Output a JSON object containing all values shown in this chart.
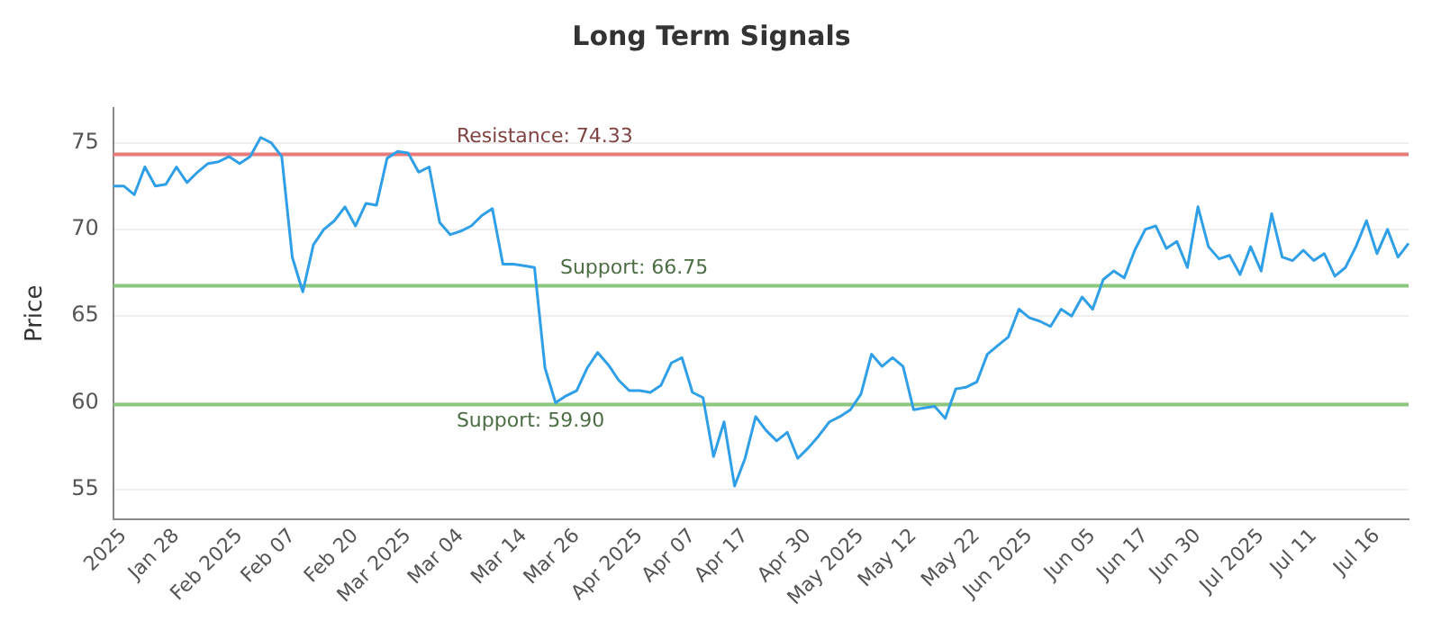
{
  "chart_data": {
    "type": "line",
    "title": "Long Term Signals",
    "ylabel": "Price",
    "categories": [
      null,
      "2025",
      null,
      null,
      null,
      null,
      "Jan 28",
      null,
      null,
      null,
      null,
      null,
      "Feb 2025",
      null,
      null,
      null,
      null,
      "Feb 07",
      null,
      null,
      null,
      null,
      null,
      "Feb 20",
      null,
      null,
      null,
      null,
      "Mar 2025",
      null,
      null,
      null,
      null,
      "Mar 04",
      null,
      null,
      null,
      null,
      null,
      "Mar 14",
      null,
      null,
      null,
      null,
      "Mar 26",
      null,
      null,
      null,
      null,
      null,
      "Apr 2025",
      null,
      null,
      null,
      null,
      "Apr 07",
      null,
      null,
      null,
      null,
      "Apr 17",
      null,
      null,
      null,
      null,
      null,
      "Apr 30",
      null,
      null,
      null,
      null,
      "May 2025",
      null,
      null,
      null,
      null,
      "May 12",
      null,
      null,
      null,
      null,
      null,
      "May 22",
      null,
      null,
      null,
      null,
      "Jun 2025",
      null,
      null,
      null,
      null,
      null,
      "Jun 05",
      null,
      null,
      null,
      null,
      "Jun 17",
      null,
      null,
      null,
      null,
      "Jun 30",
      null,
      null,
      null,
      null,
      null,
      "Jul 2025",
      null,
      null,
      null,
      null,
      "Jul 11",
      null,
      null,
      null,
      null,
      null,
      "Jul 16",
      null,
      null,
      null
    ],
    "series": [
      {
        "color": "#2f9fe8",
        "values": [
          72.5,
          72.5,
          72.0,
          73.6,
          72.5,
          72.6,
          73.6,
          72.7,
          73.3,
          73.8,
          73.9,
          74.2,
          73.8,
          74.2,
          75.3,
          75.0,
          74.2,
          68.4,
          66.4,
          69.1,
          70.0,
          70.5,
          71.3,
          70.2,
          71.5,
          71.4,
          74.1,
          74.5,
          74.4,
          73.3,
          73.6,
          70.4,
          69.7,
          69.9,
          70.2,
          70.8,
          71.2,
          68.0,
          68.0,
          67.9,
          67.8,
          62.0,
          60.0,
          60.4,
          60.7,
          62.0,
          62.9,
          62.2,
          61.3,
          60.7,
          60.7,
          60.6,
          61.0,
          62.3,
          62.6,
          60.6,
          60.3,
          56.9,
          58.9,
          55.2,
          56.8,
          59.2,
          58.4,
          57.8,
          58.3,
          56.8,
          57.4,
          58.1,
          58.9,
          59.2,
          59.6,
          60.5,
          62.8,
          62.1,
          62.6,
          62.1,
          59.6,
          59.7,
          59.8,
          59.1,
          60.8,
          60.9,
          61.2,
          62.8,
          63.3,
          63.8,
          65.4,
          64.9,
          64.7,
          64.4,
          65.4,
          65.0,
          66.1,
          65.4,
          67.1,
          67.6,
          67.2,
          68.8,
          70.0,
          70.2,
          68.9,
          69.3,
          67.8,
          71.3,
          69.0,
          68.3,
          68.5,
          67.4,
          69.0,
          67.6,
          70.9,
          68.4,
          68.2,
          68.8,
          68.2,
          68.6,
          67.3,
          67.8,
          69.0,
          70.5,
          68.6,
          70.0,
          68.4,
          69.2
        ]
      }
    ],
    "ylim": [
      53.3,
      77
    ],
    "yticks": [
      55,
      60,
      65,
      70,
      75
    ],
    "grid": "y",
    "marker": "none",
    "line_style": "solid",
    "legend": false,
    "ref_lines": [
      {
        "axis": "y",
        "value": 74.33,
        "label": "Resistance: 74.33",
        "color": "#e87a7a"
      },
      {
        "axis": "y",
        "value": 66.75,
        "label": "Support: 66.75",
        "color": "#8cc77e"
      },
      {
        "axis": "y",
        "value": 59.9,
        "label": "Support: 59.90",
        "color": "#8cc77e"
      }
    ]
  }
}
